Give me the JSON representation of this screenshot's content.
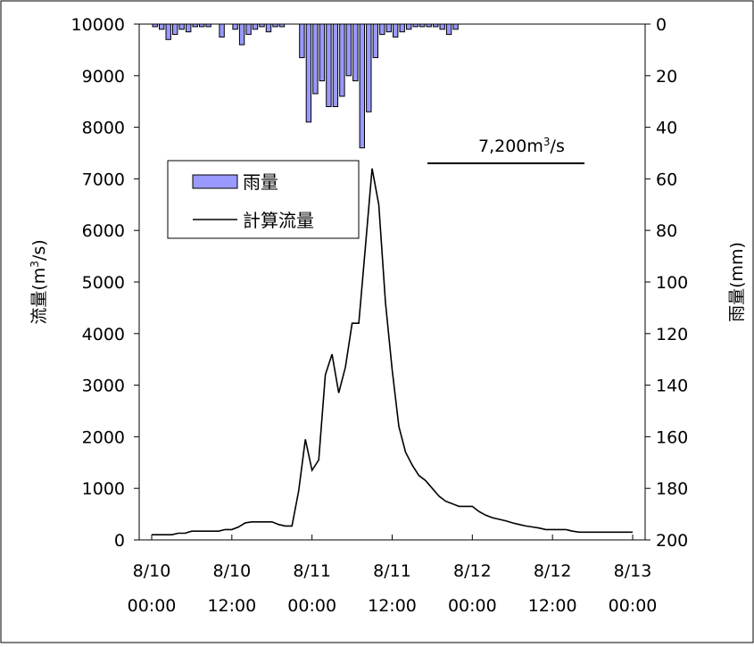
{
  "chart_data": {
    "type": "bar+line",
    "title": "",
    "annotation": "7,200m³/s",
    "xlabel": "",
    "ylabel_left": "流量(m³/s)",
    "ylabel_right": "雨量(mm)",
    "ylim_left": [
      0,
      10000
    ],
    "ylim_right_inverted": [
      0,
      200
    ],
    "yticks_left": [
      "0",
      "1000",
      "2000",
      "3000",
      "4000",
      "5000",
      "6000",
      "7000",
      "8000",
      "9000",
      "10000"
    ],
    "yticks_right": [
      "0",
      "20",
      "40",
      "60",
      "80",
      "100",
      "120",
      "140",
      "160",
      "180",
      "200"
    ],
    "xticks": [
      {
        "date": "8/10",
        "time": "00:00"
      },
      {
        "date": "8/10",
        "time": "12:00"
      },
      {
        "date": "8/11",
        "time": "00:00"
      },
      {
        "date": "8/11",
        "time": "12:00"
      },
      {
        "date": "8/12",
        "time": "00:00"
      },
      {
        "date": "8/12",
        "time": "12:00"
      },
      {
        "date": "8/13",
        "time": "00:00"
      }
    ],
    "legend": {
      "placement": "upper-left",
      "bar_label": "雨量",
      "line_label": "計算流量"
    },
    "colors": {
      "bar_fill": "#9999ff",
      "bar_stroke": "#000000",
      "line": "#000000"
    },
    "x_unit": "hours since 8/10 00:00",
    "flow_series": {
      "name": "計算流量",
      "x": [
        0,
        1,
        2,
        3,
        4,
        5,
        6,
        7,
        8,
        9,
        10,
        11,
        12,
        13,
        14,
        15,
        16,
        17,
        18,
        19,
        20,
        21,
        22,
        23,
        24,
        25,
        26,
        27,
        28,
        29,
        30,
        31,
        32,
        33,
        34,
        35,
        36,
        37,
        38,
        39,
        40,
        41,
        42,
        43,
        44,
        45,
        46,
        47,
        48,
        49,
        50,
        51,
        52,
        53,
        54,
        55,
        56,
        57,
        58,
        59,
        60,
        61,
        62,
        63,
        64,
        65,
        66,
        67,
        68,
        69,
        70,
        71,
        72
      ],
      "y": [
        100,
        100,
        100,
        100,
        130,
        130,
        170,
        170,
        170,
        170,
        170,
        200,
        200,
        250,
        330,
        350,
        350,
        350,
        350,
        300,
        270,
        270,
        950,
        1950,
        1350,
        1550,
        3200,
        3600,
        2850,
        3350,
        4200,
        4200,
        5700,
        7200,
        6500,
        4600,
        3300,
        2200,
        1700,
        1450,
        1250,
        1150,
        1000,
        850,
        750,
        700,
        650,
        650,
        650,
        550,
        480,
        430,
        400,
        370,
        330,
        300,
        270,
        250,
        230,
        200,
        200,
        200,
        200,
        170,
        150,
        150,
        150,
        150,
        150,
        150,
        150,
        150,
        150
      ]
    },
    "rain_series": {
      "name": "雨量",
      "x": [
        0,
        1,
        2,
        3,
        4,
        5,
        6,
        7,
        8,
        9,
        10,
        11,
        12,
        13,
        14,
        15,
        16,
        17,
        18,
        19,
        20,
        21,
        22,
        23,
        24,
        25,
        26,
        27,
        28,
        29,
        30,
        31,
        32,
        33,
        34,
        35,
        36,
        37,
        38,
        39,
        40,
        41,
        42,
        43,
        44,
        45,
        46,
        47
      ],
      "y": [
        1,
        2,
        6,
        4,
        2,
        3,
        1,
        1,
        1,
        0,
        5,
        0,
        2,
        8,
        4,
        2,
        1,
        3,
        1,
        1,
        0,
        0,
        13,
        38,
        27,
        22,
        32,
        32,
        28,
        20,
        22,
        48,
        34,
        13,
        4,
        3,
        5,
        3,
        2,
        1,
        1,
        1,
        1,
        2,
        4,
        2,
        0,
        0
      ]
    }
  }
}
